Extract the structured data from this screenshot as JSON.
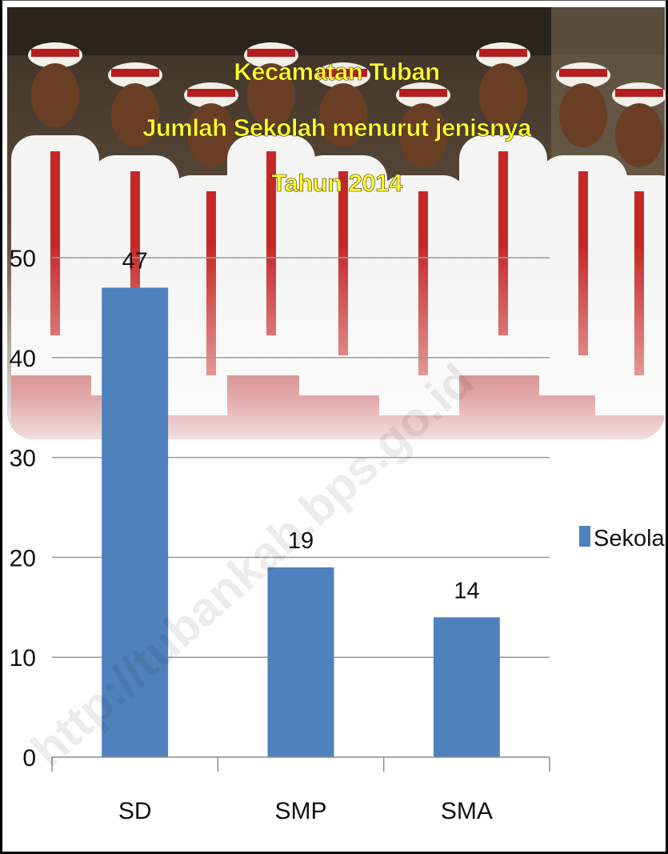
{
  "chart_data": {
    "type": "bar",
    "title_lines": [
      "Kecamatan Tuban",
      "Jumlah Sekolah menurut jenisnya",
      "Tahun 2014"
    ],
    "categories": [
      "SD",
      "SMP",
      "SMA"
    ],
    "series": [
      {
        "name": "Sekolah",
        "values": [
          47,
          19,
          14
        ],
        "color": "#4f81bd"
      }
    ],
    "data_labels": [
      "47",
      "19",
      "14"
    ],
    "ylim": [
      0,
      50
    ],
    "yticks": [
      "0",
      "10",
      "20",
      "30",
      "40",
      "50"
    ],
    "grid": true,
    "legend_position": "right",
    "watermark": "http://tubankab.bps.go.id"
  }
}
